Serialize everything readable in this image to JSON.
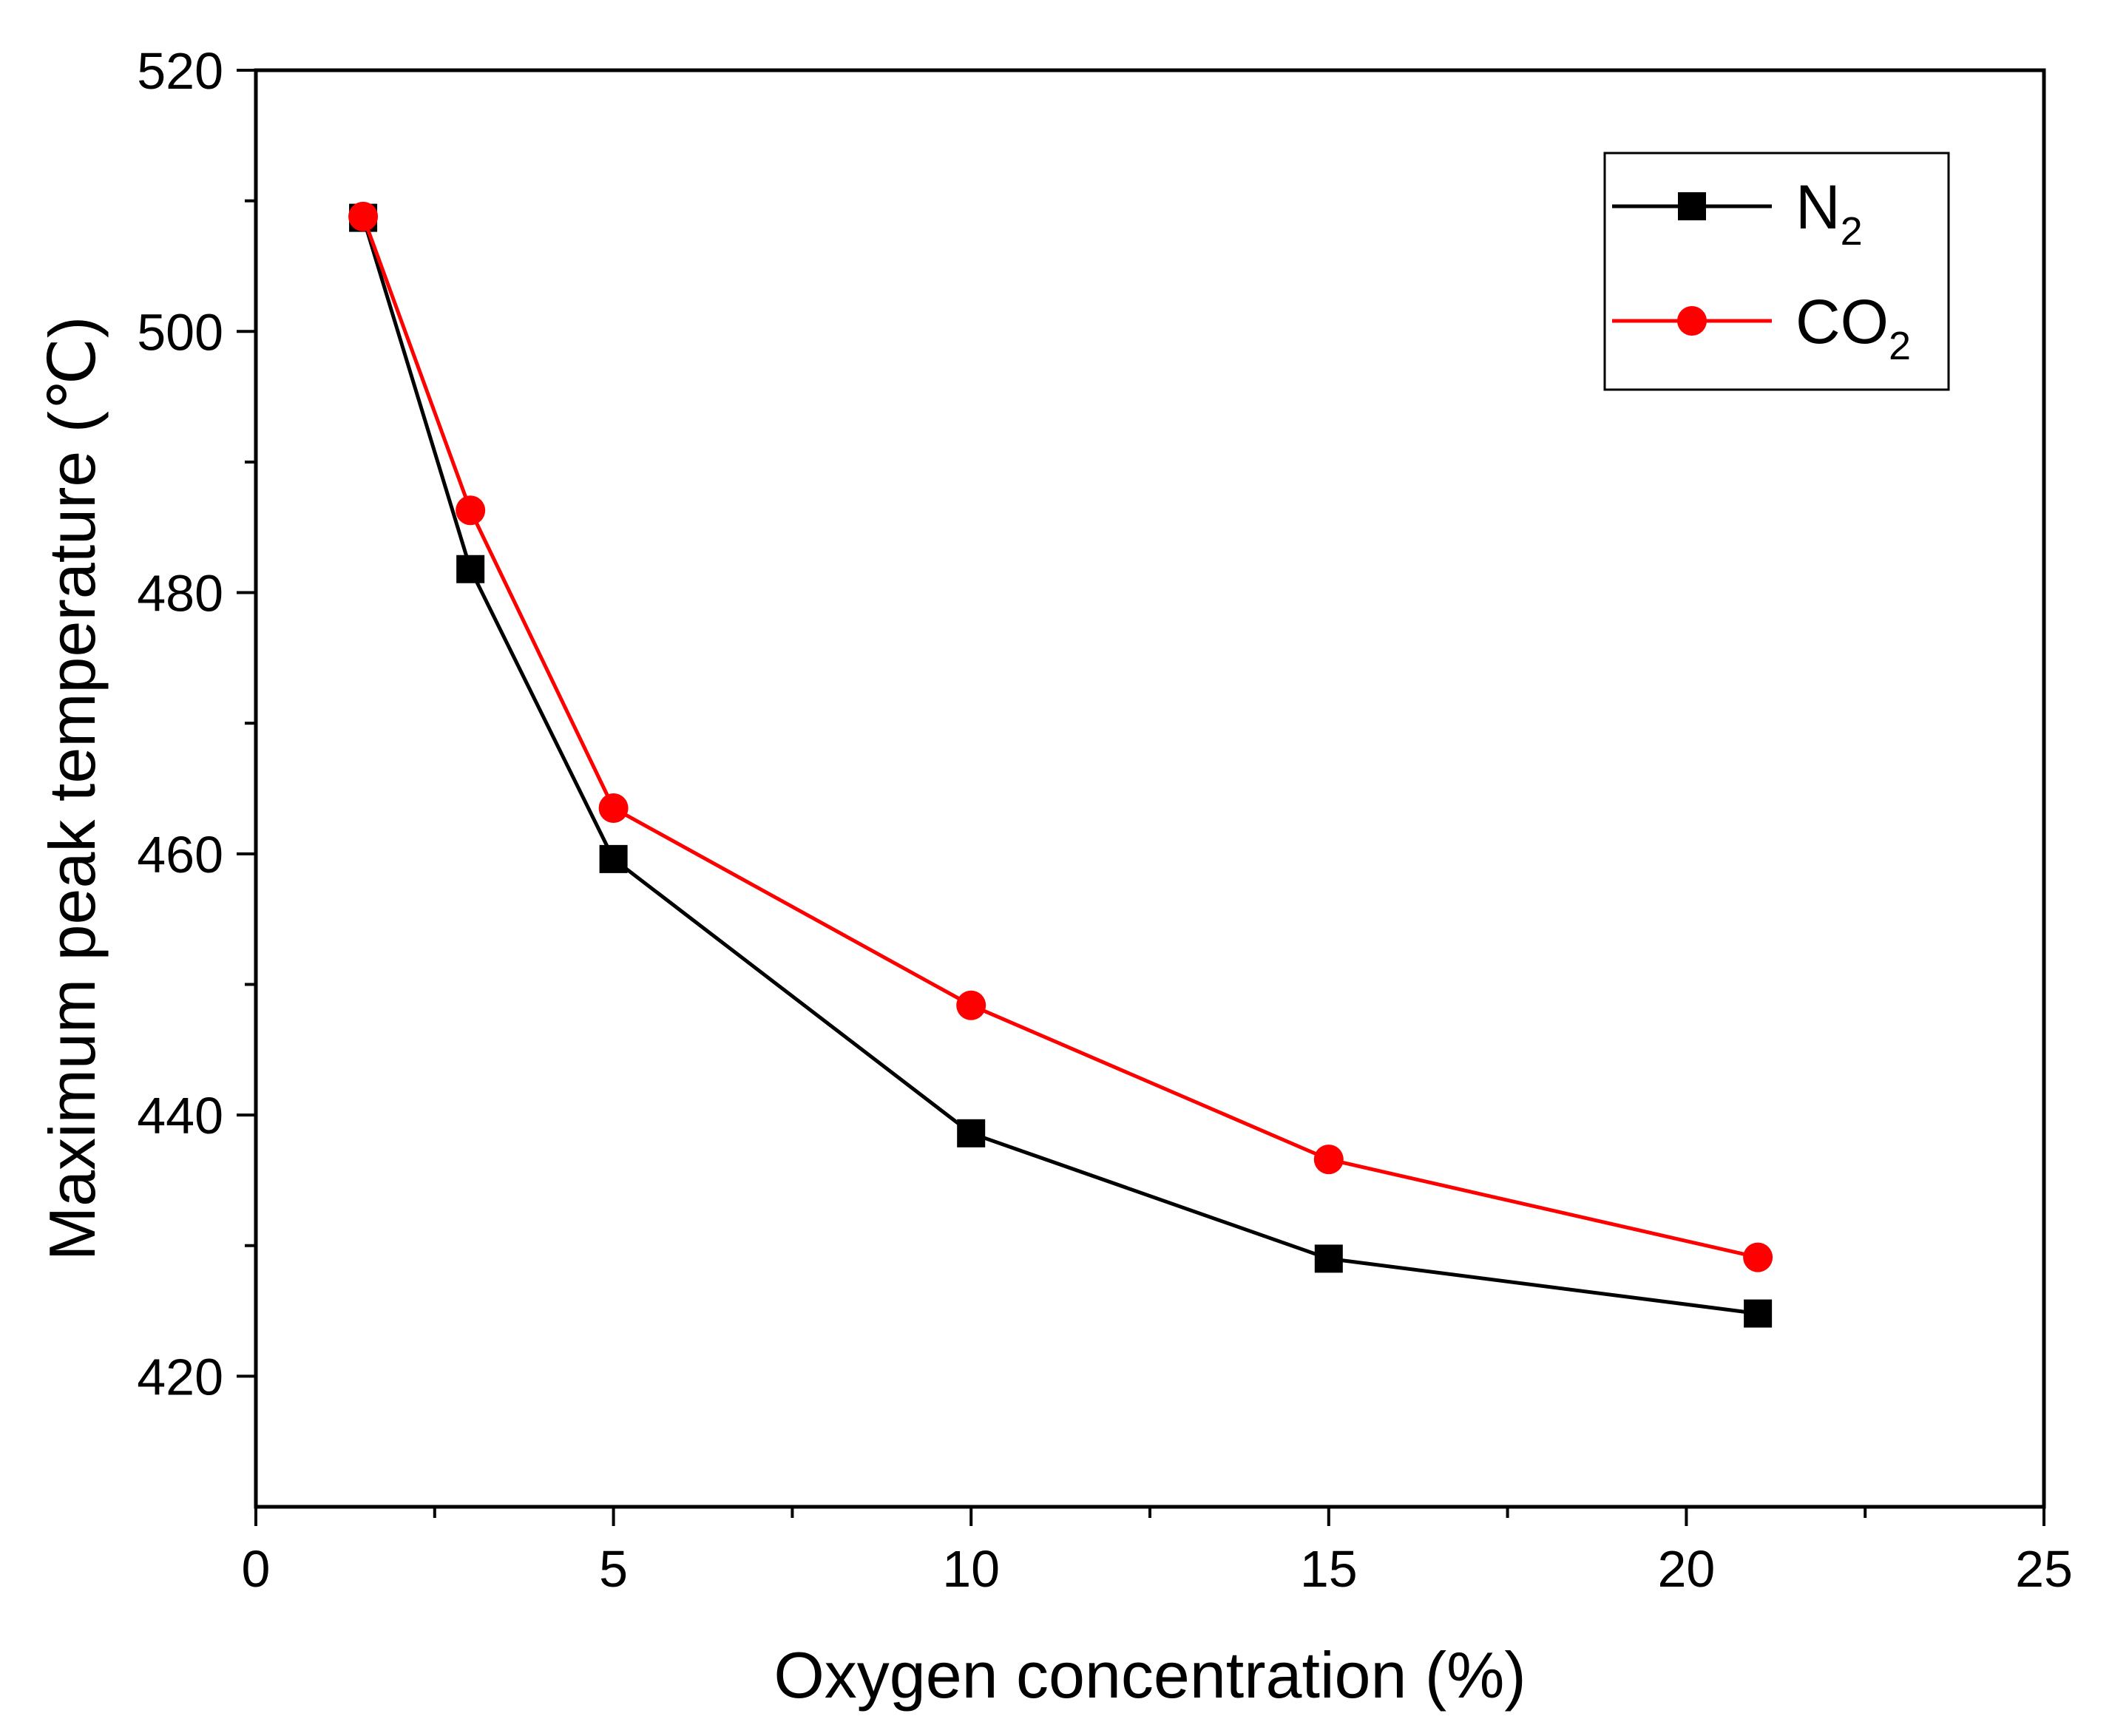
{
  "chart_data": {
    "type": "line",
    "title": "",
    "xlabel": "Oxygen concentration (%)",
    "ylabel": "Maximum peak temperature (℃)",
    "xlim": [
      0,
      25
    ],
    "ylim": [
      410,
      520
    ],
    "xticks": [
      0,
      5,
      10,
      15,
      20,
      25
    ],
    "yticks": [
      420,
      440,
      460,
      480,
      500,
      520
    ],
    "x_minor_ticks": [
      2.5,
      7.5,
      12.5,
      17.5,
      22.5
    ],
    "y_minor_ticks": [
      430,
      450,
      470,
      490,
      510
    ],
    "grid": false,
    "legend_position": "top-right",
    "series": [
      {
        "name": "N2",
        "label_main": "N",
        "label_sub": "2",
        "color": "#000000",
        "marker": "square",
        "x": [
          1.5,
          3,
          5,
          10,
          15,
          21
        ],
        "y": [
          508.7,
          481.8,
          459.6,
          438.6,
          429.0,
          424.8
        ]
      },
      {
        "name": "CO2",
        "label_main": "CO",
        "label_sub": "2",
        "color": "#ff0000",
        "marker": "circle",
        "x": [
          1.5,
          3,
          5,
          10,
          15,
          21
        ],
        "y": [
          508.8,
          486.3,
          463.5,
          448.4,
          436.6,
          429.1
        ]
      }
    ]
  }
}
